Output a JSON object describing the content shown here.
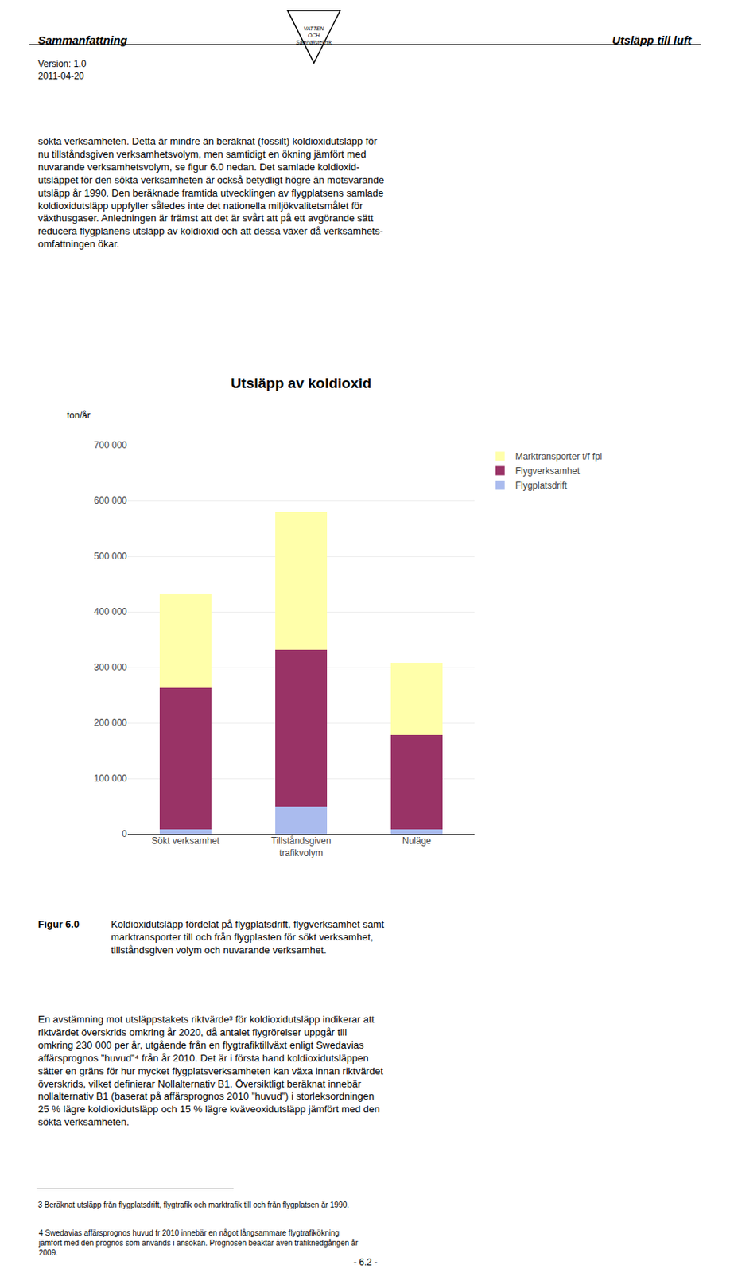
{
  "chart_data": {
    "type": "bar",
    "stacked": true,
    "title": "Utsläpp av koldioxid",
    "ylabel": "ton/år",
    "categories": [
      "Sökt verksamhet",
      "Tillståndsgiven\ntrafikvolym",
      "Nuläge"
    ],
    "series": [
      {
        "name": "Flygplatsdrift",
        "color": "#AABBEE",
        "values": [
          8000,
          50000,
          8000
        ]
      },
      {
        "name": "Flygverksamhet",
        "color": "#993366",
        "values": [
          255000,
          282000,
          170000
        ]
      },
      {
        "name": "Marktransporter t/f fpl",
        "color": "#FFFFAA",
        "values": [
          170000,
          248000,
          130000
        ]
      }
    ],
    "ylim": [
      0,
      700000
    ],
    "yticks": [
      0,
      {
        "value": 100000,
        "label": "100 000"
      },
      {
        "value": 200000,
        "label": "200 000"
      },
      {
        "value": 300000,
        "label": "300 000"
      },
      {
        "value": 400000,
        "label": "400 000"
      },
      {
        "value": 500000,
        "label": "500 000"
      },
      {
        "value": 600000,
        "label": "600 000"
      },
      {
        "value": 700000,
        "label": "700 000"
      }
    ],
    "grid": true,
    "legend": "right",
    "annotations": [
      "Sammanfattning",
      "Utsläpp till luft",
      "Version: 1.0\n2011-04-20",
      "VATTEN\nOCH\nSamhällsteknik",
      "sökta verksamheten. Detta är mindre än beräknat (fossilt) koldioxidutsläpp för\nnu tillståndsgiven verksamhetsvolym, men samtidigt en ökning jämfört med\nnuvarande verksamhetsvolym, se figur 6.0 nedan. Det samlade koldioxid-\nutsläppet för den sökta verksamheten är också betydligt högre än motsvarande\nutsläpp år 1990. Den beräknade framtida utvecklingen av flygplatsens samlade\nkoldioxidutsläpp uppfyller således inte det nationella miljökvalitetsmålet för\nväxthusgaser. Anledningen är främst att det är svårt att på ett avgörande sätt\nreducera flygplanens utsläpp av koldioxid och att dessa växer då verksamhets-\nomfattningen ökar.",
      "Figur 6.0",
      "Koldioxidutsläpp fördelat på flygplatsdrift, flygverksamhet samt\nmarktransporter till och från flygplasten för sökt verksamhet,\ntillståndsgiven volym och nuvarande verksamhet.",
      "En avstämning mot utsläppstakets riktvärde³ för koldioxidutsläpp indikerar att\nriktvärdet överskrids omkring år 2020, då antalet flygrörelser uppgår till\nomkring 230 000 per år, utgående från en flygtrafiktillväxt enligt Swedavias\naffärsprognos ”huvud”⁴ från år 2010. Det är i första hand koldioxidutsläppen\nsätter en gräns för hur mycket flygplatsverksamheten kan växa innan riktvärdet\növerskrids, vilket definierar Nollalternativ B1. Översiktligt beräknat innebär\nnollalternativ B1 (baserat på affärsprognos 2010 ”huvud”) i storleksordningen\n25 % lägre koldioxidutsläpp och 15 % lägre kväveoxidutsläpp jämfört med den\nsökta verksamheten.",
      "3 Beräknat utsläpp från flygplatsdrift, flygtrafik och marktrafik till och från flygplatsen år 1990.",
      "4 Swedavias affärsprognos huvud fr 2010 innebär en något långsammare flygtrafikökning\njämfört med den prognos som används i ansökan. Prognosen beaktar även trafiknedgången år\n2009.",
      "- 6.2 -"
    ]
  }
}
